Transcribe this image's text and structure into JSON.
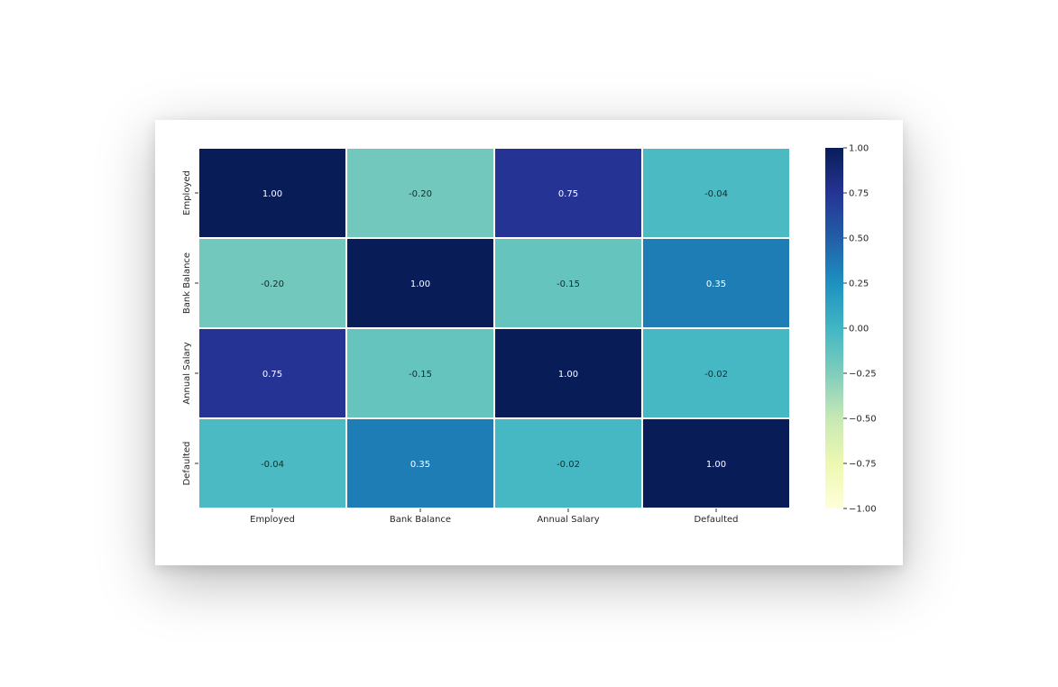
{
  "chart_data": {
    "type": "heatmap",
    "rows": [
      "Employed",
      "Bank Balance",
      "Annual Salary",
      "Defaulted"
    ],
    "columns": [
      "Employed",
      "Bank Balance",
      "Annual Salary",
      "Defaulted"
    ],
    "values": [
      [
        1.0,
        -0.2,
        0.75,
        -0.04
      ],
      [
        -0.2,
        1.0,
        -0.15,
        0.35
      ],
      [
        0.75,
        -0.15,
        1.0,
        -0.02
      ],
      [
        -0.04,
        0.35,
        -0.02,
        1.0
      ]
    ],
    "annotations": [
      [
        "1.00",
        "-0.20",
        "0.75",
        "-0.04"
      ],
      [
        "-0.20",
        "1.00",
        "-0.15",
        "0.35"
      ],
      [
        "0.75",
        "-0.15",
        "1.00",
        "-0.02"
      ],
      [
        "-0.04",
        "0.35",
        "-0.02",
        "1.00"
      ]
    ],
    "colormap": "YlGnBu",
    "vmin": -1.0,
    "vmax": 1.0,
    "colorbar_ticks": [
      "1.00",
      "0.75",
      "0.50",
      "0.25",
      "0.00",
      "−0.25",
      "−0.50",
      "−0.75",
      "−1.00"
    ],
    "colorbar_tick_values": [
      1.0,
      0.75,
      0.5,
      0.25,
      0.0,
      -0.25,
      -0.5,
      -0.75,
      -1.0
    ],
    "cell_line_color": "#ffffff"
  }
}
